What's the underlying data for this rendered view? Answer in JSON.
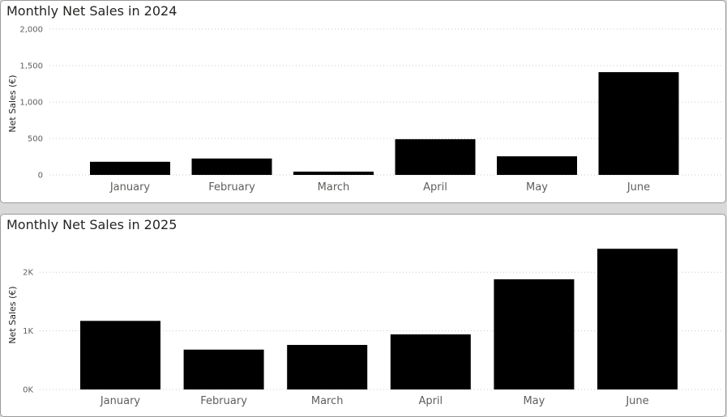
{
  "colors": {
    "bar": "#000000",
    "background": "#ffffff",
    "gridline": "#c8c8c8",
    "label": "#605e5c"
  },
  "chart_data": [
    {
      "type": "bar",
      "title": "Monthly Net Sales in 2024",
      "xlabel": "",
      "ylabel": "Net Sales (€)",
      "categories": [
        "January",
        "February",
        "March",
        "April",
        "May",
        "June"
      ],
      "values": [
        180,
        225,
        45,
        490,
        255,
        1410
      ],
      "ylim": [
        0,
        2000
      ],
      "yticks": [
        0,
        500,
        1000,
        1500,
        2000
      ],
      "ytick_labels": [
        "0",
        "500",
        "1,000",
        "1,500",
        "2,000"
      ],
      "grid": true
    },
    {
      "type": "bar",
      "title": "Monthly Net Sales in 2025",
      "xlabel": "",
      "ylabel": "Net Sales (€)",
      "categories": [
        "January",
        "February",
        "March",
        "April",
        "May",
        "June"
      ],
      "values": [
        1170,
        680,
        760,
        940,
        1880,
        2400
      ],
      "ylim": [
        0,
        2500
      ],
      "yticks": [
        0,
        1000,
        2000
      ],
      "ytick_labels": [
        "0K",
        "1K",
        "2K"
      ],
      "grid": true
    }
  ]
}
